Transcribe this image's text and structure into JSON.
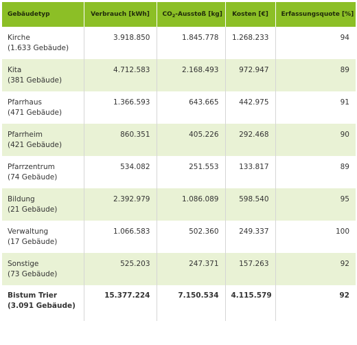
{
  "headers": {
    "type": "Gebäudetyp",
    "consumption": "Verbrauch [kWh]",
    "co2_prefix": "CO",
    "co2_sub": "2",
    "co2_suffix": "-Ausstoß [kg]",
    "cost": "Kosten [€]",
    "quota": "Erfassungsquote [%]"
  },
  "rows": [
    {
      "name": "Kirche",
      "count": "(1.633 Gebäude)",
      "consumption": "3.918.850",
      "co2": "1.845.778",
      "cost": "1.268.233",
      "quota": "94"
    },
    {
      "name": "Kita",
      "count": "(381 Gebäude)",
      "consumption": "4.712.583",
      "co2": "2.168.493",
      "cost": "972.947",
      "quota": "89"
    },
    {
      "name": "Pfarrhaus",
      "count": "(471 Gebäude)",
      "consumption": "1.366.593",
      "co2": "643.665",
      "cost": "442.975",
      "quota": "91"
    },
    {
      "name": "Pfarrheim",
      "count": "(421 Gebäude)",
      "consumption": "860.351",
      "co2": "405.226",
      "cost": "292.468",
      "quota": "90"
    },
    {
      "name": "Pfarrzentrum",
      "count": "(74 Gebäude)",
      "consumption": "534.082",
      "co2": "251.553",
      "cost": "133.817",
      "quota": "89"
    },
    {
      "name": "Bildung",
      "count": "(21 Gebäude)",
      "consumption": "2.392.979",
      "co2": "1.086.089",
      "cost": "598.540",
      "quota": "95"
    },
    {
      "name": "Verwaltung",
      "count": "(17 Gebäude)",
      "consumption": "1.066.583",
      "co2": "502.360",
      "cost": "249.337",
      "quota": "100"
    },
    {
      "name": "Sonstige",
      "count": "(73 Gebäude)",
      "consumption": "525.203",
      "co2": "247.371",
      "cost": "157.263",
      "quota": "92"
    }
  ],
  "total": {
    "name": "Bistum Trier",
    "count": "(3.091 Gebäude)",
    "consumption": "15.377.224",
    "co2": "7.150.534",
    "cost": "4.115.579",
    "quota": "92"
  },
  "colors": {
    "header_bg": "#8cbf26",
    "stripe_bg": "#e9f2d5"
  }
}
